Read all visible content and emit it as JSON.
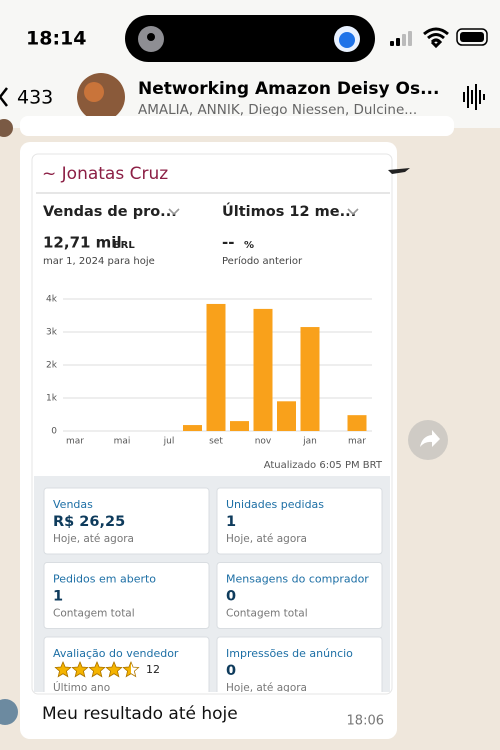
{
  "status_bar": {
    "time": "18:14"
  },
  "header": {
    "back_count": "433",
    "title": "Networking Amazon Deisy Os...",
    "subtitle": "AMALIA, ANNIK, Diego Niessen, Dulcine..."
  },
  "message": {
    "sender": "~ Jonatas Cruz",
    "caption": "Meu resultado até hoje",
    "time": "18:06"
  },
  "screenshot": {
    "dropdowns": [
      "Vendas de pro...",
      "Últimos 12 me..."
    ],
    "metric": {
      "value": "12,71 mil",
      "unit": "BRL",
      "period": "mar 1, 2024 para hoje"
    },
    "comparison": {
      "value": "--",
      "unit": "%",
      "label": "Período anterior"
    },
    "updated": "Atualizado 6:05 PM BRT",
    "cards": [
      {
        "title": "Vendas",
        "value": "R$ 26,25",
        "note": "Hoje, até agora"
      },
      {
        "title": "Unidades pedidas",
        "value": "1",
        "note": "Hoje, até agora"
      },
      {
        "title": "Pedidos em aberto",
        "value": "1",
        "note": "Contagem total"
      },
      {
        "title": "Mensagens do comprador",
        "value": "0",
        "note": "Contagem total"
      },
      {
        "title": "Avaliação do vendedor",
        "rating": 4.5,
        "reviews": 12,
        "note": "Último ano"
      },
      {
        "title": "Impressões de anúncio",
        "value": "0",
        "note": "Hoje, até agora"
      }
    ]
  },
  "chart_data": {
    "type": "bar",
    "categories": [
      "mar",
      null,
      "mai",
      null,
      "jul",
      null,
      "set",
      null,
      "nov",
      null,
      "jan",
      null,
      "mar"
    ],
    "values": [
      0,
      0,
      0,
      0,
      0,
      180,
      3850,
      300,
      3700,
      900,
      3150,
      0,
      480
    ],
    "color": "#f9a11b",
    "ylim": [
      0,
      4000
    ],
    "yticks": [
      0,
      {
        "value": 1000,
        "label": "1k"
      },
      {
        "value": 2000,
        "label": "2k"
      },
      {
        "value": 3000,
        "label": "3k"
      },
      {
        "value": 4000,
        "label": "4k"
      }
    ],
    "grid": true
  }
}
